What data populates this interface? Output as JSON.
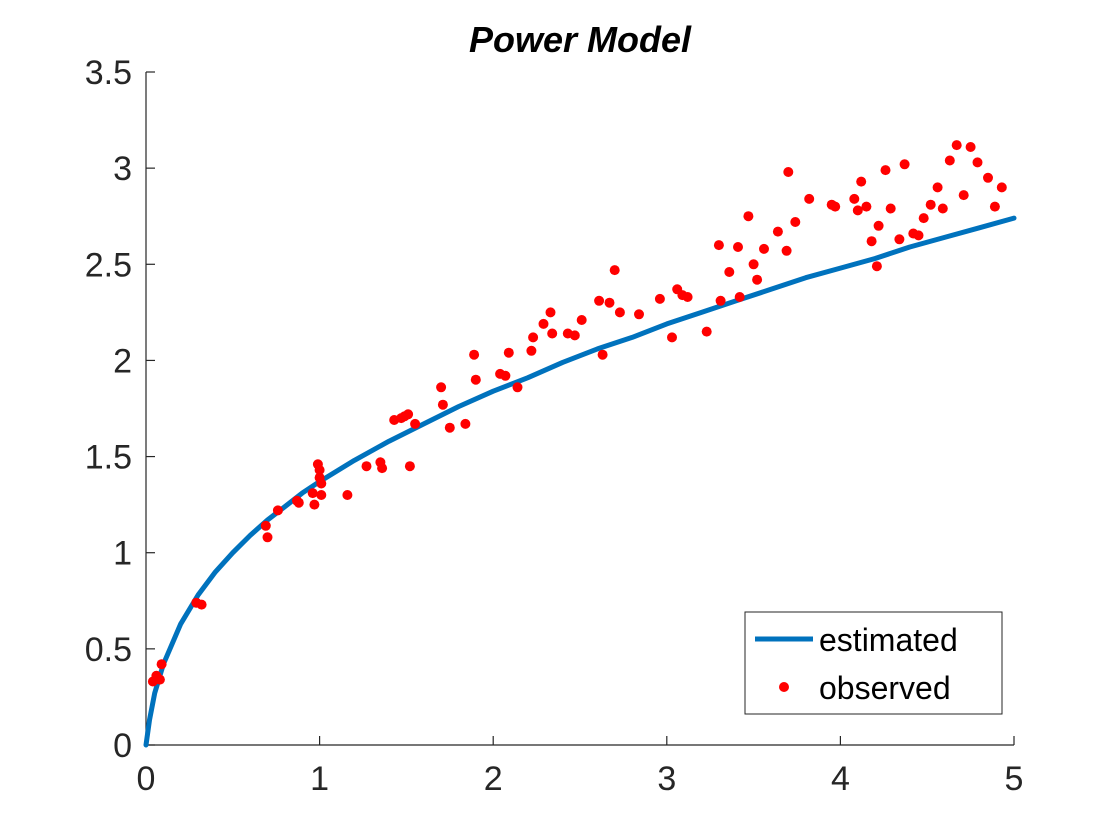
{
  "chart_data": {
    "type": "line",
    "title": "Power Model",
    "xlabel": "",
    "ylabel": "",
    "xlim": [
      0,
      5
    ],
    "ylim": [
      0,
      3.5
    ],
    "x_ticks": [
      0,
      1,
      2,
      3,
      4,
      5
    ],
    "x_tick_labels": [
      "0",
      "1",
      "2",
      "3",
      "4",
      "5"
    ],
    "y_ticks": [
      0,
      0.5,
      1,
      1.5,
      2,
      2.5,
      3,
      3.5
    ],
    "y_tick_labels": [
      "0",
      "0.5",
      "1",
      "1.5",
      "2",
      "2.5",
      "3",
      "3.5"
    ],
    "grid": false,
    "legend_position": "bottom-right",
    "series": [
      {
        "name": "estimated",
        "style": "line",
        "color": "#0072BD",
        "x": [
          0,
          0.02,
          0.05,
          0.1,
          0.2,
          0.3,
          0.4,
          0.5,
          0.6,
          0.7,
          0.8,
          0.9,
          1.0,
          1.2,
          1.4,
          1.6,
          1.8,
          2.0,
          2.2,
          2.4,
          2.6,
          2.8,
          3.0,
          3.2,
          3.4,
          3.6,
          3.8,
          4.0,
          4.2,
          4.4,
          4.6,
          4.8,
          5.0
        ],
        "y": [
          0,
          0.13,
          0.27,
          0.42,
          0.63,
          0.78,
          0.9,
          1.0,
          1.09,
          1.17,
          1.24,
          1.31,
          1.37,
          1.48,
          1.58,
          1.67,
          1.76,
          1.84,
          1.91,
          1.99,
          2.06,
          2.12,
          2.19,
          2.25,
          2.31,
          2.37,
          2.43,
          2.48,
          2.53,
          2.59,
          2.64,
          2.69,
          2.74
        ]
      },
      {
        "name": "observed",
        "style": "scatter",
        "color": "#FF0000",
        "x": [
          0.04,
          0.06,
          0.08,
          0.09,
          0.29,
          0.32,
          0.69,
          0.7,
          0.76,
          0.87,
          0.88,
          0.96,
          0.97,
          0.99,
          1.0,
          1.0,
          1.01,
          1.01,
          1.16,
          1.27,
          1.35,
          1.36,
          1.43,
          1.47,
          1.49,
          1.51,
          1.52,
          1.55,
          1.7,
          1.71,
          1.75,
          1.84,
          1.89,
          1.9,
          2.04,
          2.07,
          2.09,
          2.14,
          2.22,
          2.23,
          2.29,
          2.33,
          2.34,
          2.43,
          2.47,
          2.51,
          2.61,
          2.63,
          2.67,
          2.7,
          2.73,
          2.84,
          2.96,
          3.03,
          3.06,
          3.09,
          3.12,
          3.23,
          3.3,
          3.31,
          3.36,
          3.41,
          3.42,
          3.47,
          3.5,
          3.52,
          3.56,
          3.64,
          3.69,
          3.7,
          3.74,
          3.82,
          3.95,
          3.97,
          4.08,
          4.1,
          4.12,
          4.15,
          4.18,
          4.21,
          4.22,
          4.26,
          4.29,
          4.34,
          4.37,
          4.42,
          4.45,
          4.48,
          4.52,
          4.56,
          4.59,
          4.63,
          4.67,
          4.71,
          4.75,
          4.79,
          4.85,
          4.89,
          4.93
        ],
        "y": [
          0.33,
          0.36,
          0.34,
          0.42,
          0.74,
          0.73,
          1.14,
          1.08,
          1.22,
          1.27,
          1.26,
          1.31,
          1.25,
          1.46,
          1.39,
          1.43,
          1.3,
          1.36,
          1.3,
          1.45,
          1.47,
          1.44,
          1.69,
          1.7,
          1.71,
          1.72,
          1.45,
          1.67,
          1.86,
          1.77,
          1.65,
          1.67,
          2.03,
          1.9,
          1.93,
          1.92,
          2.04,
          1.86,
          2.05,
          2.12,
          2.19,
          2.25,
          2.14,
          2.14,
          2.13,
          2.21,
          2.31,
          2.03,
          2.3,
          2.47,
          2.25,
          2.24,
          2.32,
          2.12,
          2.37,
          2.34,
          2.33,
          2.15,
          2.6,
          2.31,
          2.46,
          2.59,
          2.33,
          2.75,
          2.5,
          2.42,
          2.58,
          2.67,
          2.57,
          2.98,
          2.72,
          2.84,
          2.81,
          2.8,
          2.84,
          2.78,
          2.93,
          2.8,
          2.62,
          2.49,
          2.7,
          2.99,
          2.79,
          2.63,
          3.02,
          2.66,
          2.65,
          2.74,
          2.81,
          2.9,
          2.79,
          3.04,
          3.12,
          2.86,
          3.11,
          3.03,
          2.95,
          2.8,
          2.9
        ]
      }
    ]
  }
}
